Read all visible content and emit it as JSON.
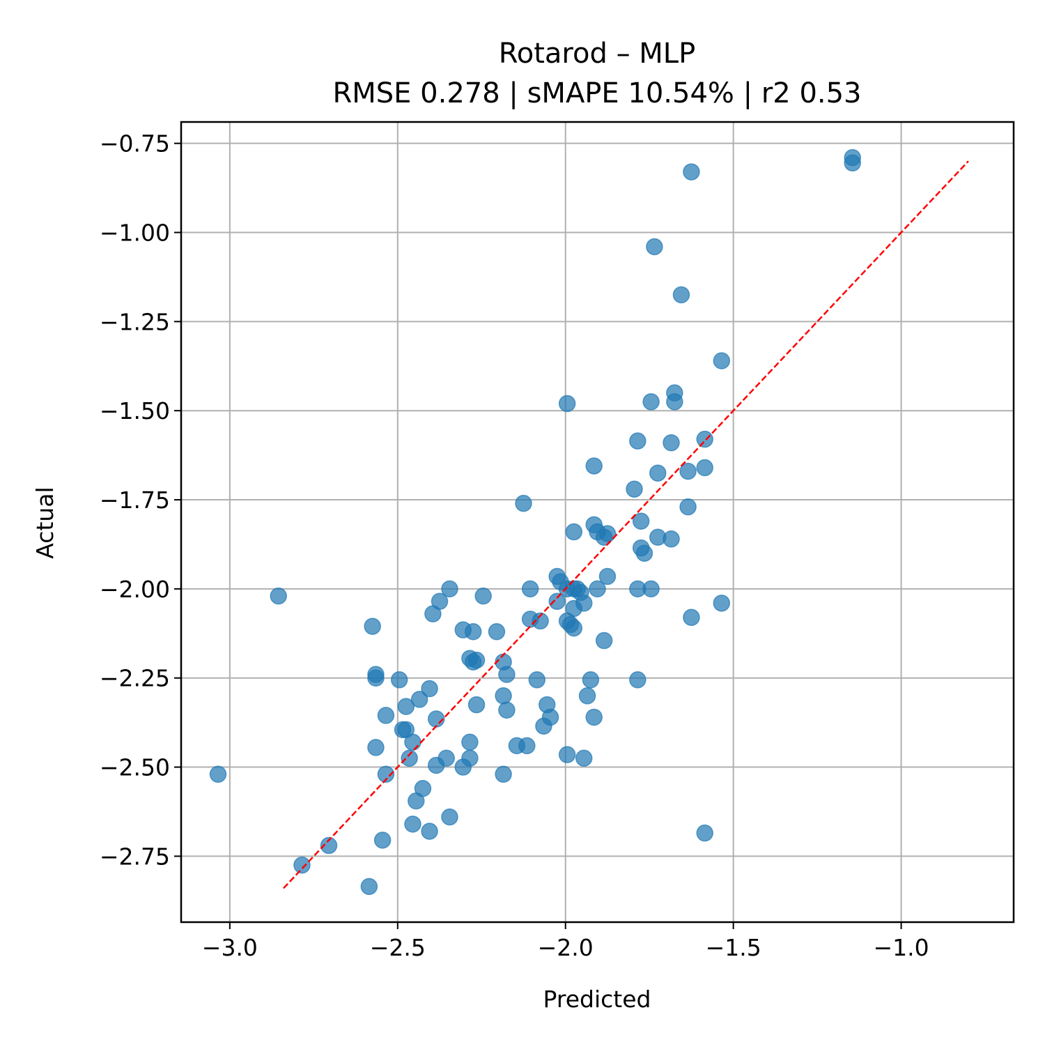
{
  "chart_data": {
    "type": "scatter",
    "title": "Rotarod – MLP",
    "subtitle": "RMSE 0.278 | sMAPE 10.54%  | r2 0.53",
    "xlabel": "Predicted",
    "ylabel": "Actual",
    "xlim": [
      -3.145,
      -0.665
    ],
    "ylim": [
      -2.935,
      -0.69
    ],
    "xticks": [
      -3.0,
      -2.5,
      -2.0,
      -1.5,
      -1.0
    ],
    "xtick_labels": [
      "−3.0",
      "−2.5",
      "−2.0",
      "−1.5",
      "−1.0"
    ],
    "yticks": [
      -2.75,
      -2.5,
      -2.25,
      -2.0,
      -1.75,
      -1.5,
      -1.25,
      -1.0,
      -0.75
    ],
    "ytick_labels": [
      "−2.75",
      "−2.50",
      "−2.25",
      "−2.00",
      "−1.75",
      "−1.50",
      "−1.25",
      "−1.00",
      "−0.75"
    ],
    "grid": true,
    "marker_color": "#1f77b4",
    "reference_line": {
      "style": "dashed",
      "color": "#ff0000",
      "x": [
        -2.84,
        -0.8
      ],
      "y": [
        -2.84,
        -0.8
      ]
    },
    "points": [
      [
        -1.145,
        -0.79
      ],
      [
        -1.145,
        -0.805
      ],
      [
        -1.625,
        -0.83
      ],
      [
        -1.735,
        -1.04
      ],
      [
        -1.655,
        -1.175
      ],
      [
        -1.535,
        -1.36
      ],
      [
        -1.995,
        -1.48
      ],
      [
        -1.745,
        -1.475
      ],
      [
        -1.675,
        -1.45
      ],
      [
        -1.675,
        -1.475
      ],
      [
        -1.785,
        -1.585
      ],
      [
        -1.685,
        -1.59
      ],
      [
        -1.585,
        -1.58
      ],
      [
        -1.915,
        -1.655
      ],
      [
        -1.725,
        -1.675
      ],
      [
        -1.635,
        -1.67
      ],
      [
        -1.585,
        -1.66
      ],
      [
        -2.125,
        -1.76
      ],
      [
        -1.795,
        -1.72
      ],
      [
        -1.635,
        -1.77
      ],
      [
        -1.775,
        -1.81
      ],
      [
        -1.915,
        -1.82
      ],
      [
        -1.905,
        -1.84
      ],
      [
        -1.975,
        -1.84
      ],
      [
        -1.885,
        -1.855
      ],
      [
        -1.875,
        -1.845
      ],
      [
        -1.725,
        -1.855
      ],
      [
        -1.685,
        -1.86
      ],
      [
        -1.775,
        -1.885
      ],
      [
        -1.765,
        -1.9
      ],
      [
        -2.025,
        -1.965
      ],
      [
        -1.875,
        -1.965
      ],
      [
        -2.015,
        -1.98
      ],
      [
        -1.995,
        -2.0
      ],
      [
        -1.975,
        -2.0
      ],
      [
        -1.965,
        -2.0
      ],
      [
        -1.955,
        -2.01
      ],
      [
        -1.905,
        -2.0
      ],
      [
        -1.785,
        -2.0
      ],
      [
        -1.745,
        -2.0
      ],
      [
        -2.105,
        -2.0
      ],
      [
        -2.345,
        -2.0
      ],
      [
        -2.375,
        -2.035
      ],
      [
        -2.025,
        -2.035
      ],
      [
        -1.945,
        -2.04
      ],
      [
        -2.855,
        -2.02
      ],
      [
        -2.245,
        -2.02
      ],
      [
        -1.975,
        -2.055
      ],
      [
        -2.395,
        -2.07
      ],
      [
        -2.105,
        -2.085
      ],
      [
        -2.075,
        -2.09
      ],
      [
        -1.995,
        -2.09
      ],
      [
        -1.985,
        -2.1
      ],
      [
        -1.975,
        -2.11
      ],
      [
        -1.625,
        -2.08
      ],
      [
        -1.535,
        -2.04
      ],
      [
        -2.575,
        -2.105
      ],
      [
        -2.305,
        -2.115
      ],
      [
        -2.275,
        -2.12
      ],
      [
        -2.205,
        -2.12
      ],
      [
        -1.885,
        -2.145
      ],
      [
        -2.285,
        -2.195
      ],
      [
        -2.265,
        -2.2
      ],
      [
        -2.275,
        -2.205
      ],
      [
        -2.185,
        -2.205
      ],
      [
        -2.565,
        -2.24
      ],
      [
        -2.565,
        -2.25
      ],
      [
        -2.495,
        -2.255
      ],
      [
        -2.175,
        -2.24
      ],
      [
        -2.085,
        -2.255
      ],
      [
        -1.925,
        -2.255
      ],
      [
        -1.785,
        -2.255
      ],
      [
        -2.405,
        -2.28
      ],
      [
        -2.435,
        -2.31
      ],
      [
        -2.475,
        -2.33
      ],
      [
        -2.185,
        -2.3
      ],
      [
        -1.935,
        -2.3
      ],
      [
        -2.265,
        -2.325
      ],
      [
        -2.055,
        -2.325
      ],
      [
        -2.175,
        -2.34
      ],
      [
        -2.535,
        -2.355
      ],
      [
        -2.385,
        -2.365
      ],
      [
        -2.045,
        -2.36
      ],
      [
        -1.915,
        -2.36
      ],
      [
        -2.485,
        -2.395
      ],
      [
        -2.475,
        -2.395
      ],
      [
        -2.065,
        -2.385
      ],
      [
        -2.455,
        -2.43
      ],
      [
        -2.285,
        -2.43
      ],
      [
        -2.565,
        -2.445
      ],
      [
        -2.145,
        -2.44
      ],
      [
        -2.115,
        -2.44
      ],
      [
        -2.465,
        -2.475
      ],
      [
        -2.355,
        -2.475
      ],
      [
        -2.285,
        -2.475
      ],
      [
        -2.385,
        -2.495
      ],
      [
        -2.305,
        -2.5
      ],
      [
        -1.995,
        -2.465
      ],
      [
        -1.945,
        -2.475
      ],
      [
        -3.035,
        -2.52
      ],
      [
        -2.535,
        -2.52
      ],
      [
        -2.185,
        -2.52
      ],
      [
        -2.425,
        -2.56
      ],
      [
        -2.445,
        -2.595
      ],
      [
        -2.345,
        -2.64
      ],
      [
        -2.455,
        -2.66
      ],
      [
        -2.405,
        -2.68
      ],
      [
        -1.585,
        -2.685
      ],
      [
        -2.545,
        -2.705
      ],
      [
        -2.705,
        -2.72
      ],
      [
        -2.785,
        -2.775
      ],
      [
        -2.585,
        -2.835
      ]
    ]
  }
}
